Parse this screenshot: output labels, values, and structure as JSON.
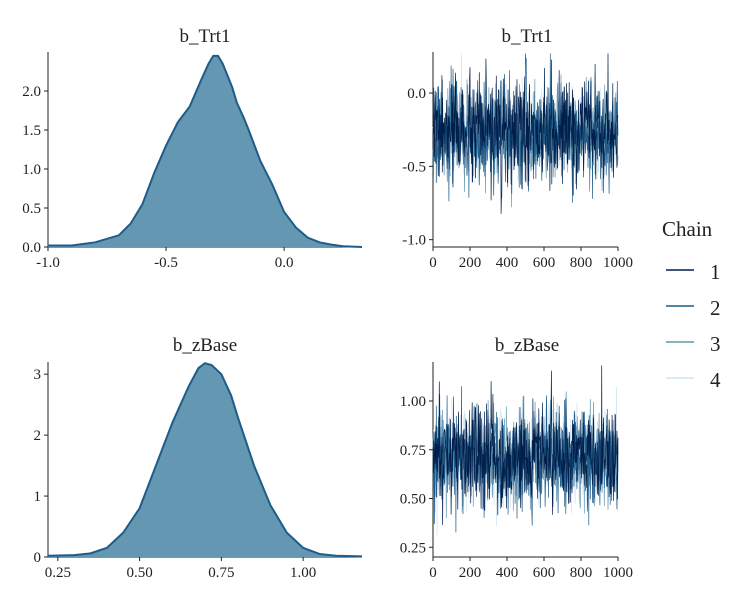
{
  "chart_data": [
    {
      "type": "area",
      "title": "b_Trt1",
      "xlim": [
        -1.0,
        0.33
      ],
      "ylim": [
        0,
        2.5
      ],
      "x_ticks": [
        -1.0,
        -0.5,
        0.0
      ],
      "x_tick_labels": [
        "-1.0",
        "-0.5",
        "0.0"
      ],
      "y_ticks": [
        0.0,
        0.5,
        1.0,
        1.5,
        2.0
      ],
      "y_tick_labels": [
        "0.0",
        "0.5",
        "1.0",
        "1.5",
        "2.0"
      ],
      "x": [
        -1.0,
        -0.9,
        -0.8,
        -0.7,
        -0.65,
        -0.6,
        -0.55,
        -0.5,
        -0.45,
        -0.4,
        -0.35,
        -0.32,
        -0.3,
        -0.28,
        -0.26,
        -0.24,
        -0.22,
        -0.2,
        -0.17,
        -0.15,
        -0.1,
        -0.05,
        0.0,
        0.05,
        0.1,
        0.15,
        0.2,
        0.25,
        0.33
      ],
      "values": [
        0.02,
        0.02,
        0.06,
        0.15,
        0.3,
        0.55,
        0.95,
        1.3,
        1.6,
        1.8,
        2.15,
        2.35,
        2.45,
        2.45,
        2.35,
        2.2,
        2.05,
        1.85,
        1.65,
        1.5,
        1.1,
        0.8,
        0.45,
        0.25,
        0.12,
        0.06,
        0.03,
        0.01,
        0.0
      ]
    },
    {
      "type": "line",
      "title": "b_Trt1",
      "xlim": [
        0,
        1000
      ],
      "ylim": [
        -1.05,
        0.28
      ],
      "x_ticks": [
        0,
        200,
        400,
        600,
        800,
        1000
      ],
      "x_tick_labels": [
        "0",
        "200",
        "400",
        "600",
        "800",
        "1000"
      ],
      "y_ticks": [
        0.0,
        -0.5,
        -1.0
      ],
      "y_tick_labels": [
        "0.0",
        "-0.5",
        "-1.0"
      ],
      "series": [
        {
          "name": "1",
          "mean": -0.27,
          "sd": 0.17
        },
        {
          "name": "2",
          "mean": -0.28,
          "sd": 0.17
        },
        {
          "name": "3",
          "mean": -0.27,
          "sd": 0.16
        },
        {
          "name": "4",
          "mean": -0.26,
          "sd": 0.16
        }
      ]
    },
    {
      "type": "area",
      "title": "b_zBase",
      "xlim": [
        0.22,
        1.18
      ],
      "ylim": [
        0,
        3.2
      ],
      "x_ticks": [
        0.25,
        0.5,
        0.75,
        1.0
      ],
      "x_tick_labels": [
        "0.25",
        "0.50",
        "0.75",
        "1.00"
      ],
      "y_ticks": [
        0,
        1,
        2,
        3
      ],
      "y_tick_labels": [
        "0",
        "1",
        "2",
        "3"
      ],
      "x": [
        0.22,
        0.3,
        0.35,
        0.4,
        0.45,
        0.5,
        0.55,
        0.6,
        0.65,
        0.68,
        0.7,
        0.72,
        0.75,
        0.78,
        0.8,
        0.85,
        0.9,
        0.95,
        1.0,
        1.05,
        1.1,
        1.18
      ],
      "values": [
        0.02,
        0.03,
        0.06,
        0.15,
        0.4,
        0.8,
        1.5,
        2.2,
        2.8,
        3.1,
        3.18,
        3.15,
        3.0,
        2.65,
        2.3,
        1.5,
        0.85,
        0.4,
        0.15,
        0.05,
        0.02,
        0.01
      ]
    },
    {
      "type": "line",
      "title": "b_zBase",
      "xlim": [
        0,
        1000
      ],
      "ylim": [
        0.2,
        1.2
      ],
      "x_ticks": [
        0,
        200,
        400,
        600,
        800,
        1000
      ],
      "x_tick_labels": [
        "0",
        "200",
        "400",
        "600",
        "800",
        "1000"
      ],
      "y_ticks": [
        1.0,
        0.75,
        0.5,
        0.25
      ],
      "y_tick_labels": [
        "1.00",
        "0.75",
        "0.50",
        "0.25"
      ],
      "series": [
        {
          "name": "1",
          "mean": 0.72,
          "sd": 0.13
        },
        {
          "name": "2",
          "mean": 0.71,
          "sd": 0.13
        },
        {
          "name": "3",
          "mean": 0.72,
          "sd": 0.12
        },
        {
          "name": "4",
          "mean": 0.73,
          "sd": 0.12
        }
      ]
    }
  ],
  "legend": {
    "title": "Chain",
    "position": "right",
    "entries": [
      "1",
      "2",
      "3",
      "4"
    ]
  },
  "colors": {
    "chains": [
      "#011f4b",
      "#1f5c8a",
      "#6497b1",
      "#d1e4ef"
    ],
    "area_fill": "#6497b1",
    "area_line": "#1f5c8a"
  }
}
